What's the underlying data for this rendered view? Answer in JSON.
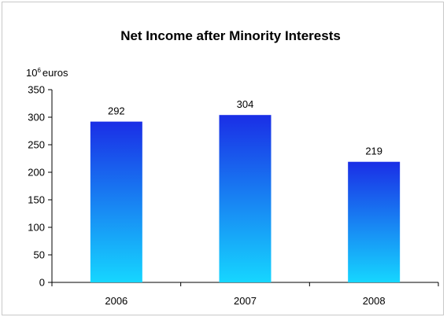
{
  "chart_data": {
    "type": "bar",
    "title": "Net Income after Minority Interests",
    "unit_base": "10",
    "unit_exponent": "6",
    "unit_word": "euros",
    "categories": [
      "2006",
      "2007",
      "2008"
    ],
    "values": [
      292,
      304,
      219
    ],
    "data_labels": [
      "292",
      "304",
      "219"
    ],
    "ylim": [
      0,
      350
    ],
    "yticks": [
      0,
      50,
      100,
      150,
      200,
      250,
      300,
      350
    ],
    "ytick_labels": [
      "0",
      "50",
      "100",
      "150",
      "200",
      "250",
      "300",
      "350"
    ],
    "grid": false,
    "legend": "none",
    "bar_gradient": {
      "top": "#1a2ee6",
      "bottom": "#16d6ff"
    }
  }
}
